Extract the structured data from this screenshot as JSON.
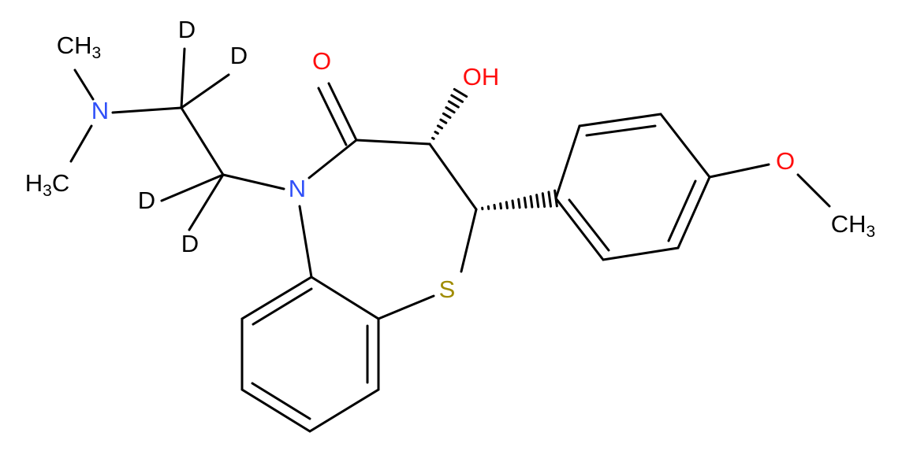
{
  "atoms": [
    {
      "label": "CH",
      "subscript": "3"
    },
    {
      "label": "N"
    },
    {
      "label": "H",
      "subscript": "3",
      "suffix": "C"
    },
    {
      "label": "D"
    },
    {
      "label": "D"
    },
    {
      "label": "D"
    },
    {
      "label": "D"
    },
    {
      "label": "O"
    },
    {
      "label": "OH"
    },
    {
      "label": "N"
    },
    {
      "label": "S"
    },
    {
      "label": "O"
    },
    {
      "label": "CH",
      "subscript": "3"
    }
  ]
}
